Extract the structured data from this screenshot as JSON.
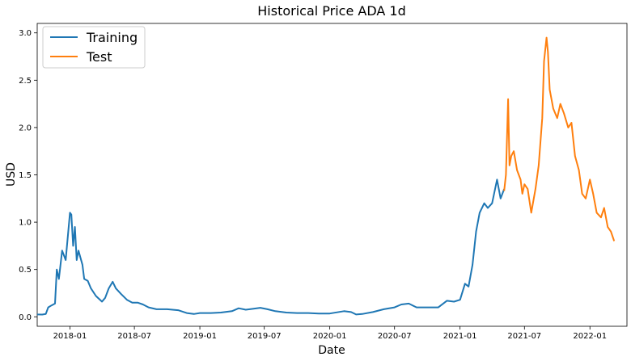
{
  "chart_data": {
    "type": "line",
    "title": "Historical Price ADA 1d",
    "xlabel": "Date",
    "ylabel": "USD",
    "xlim": [
      "2017-10-01",
      "2022-04-15"
    ],
    "ylim": [
      -0.1,
      3.1
    ],
    "x_ticks": [
      "2018-01",
      "2018-07",
      "2019-01",
      "2019-07",
      "2020-01",
      "2020-07",
      "2021-01",
      "2021-07",
      "2022-01"
    ],
    "y_ticks": [
      0.0,
      0.5,
      1.0,
      1.5,
      2.0,
      2.5,
      3.0
    ],
    "y_tick_labels": [
      "0.0",
      "0.5",
      "1.0",
      "1.5",
      "2.0",
      "2.5",
      "3.0"
    ],
    "grid": false,
    "legend_position": "top-left",
    "series": [
      {
        "name": "Training",
        "color": "#1f77b4",
        "points": [
          [
            "2017-10-01",
            0.025
          ],
          [
            "2017-10-15",
            0.024
          ],
          [
            "2017-10-25",
            0.03
          ],
          [
            "2017-11-01",
            0.1
          ],
          [
            "2017-11-10",
            0.12
          ],
          [
            "2017-11-20",
            0.14
          ],
          [
            "2017-11-25",
            0.5
          ],
          [
            "2017-12-01",
            0.4
          ],
          [
            "2017-12-10",
            0.7
          ],
          [
            "2017-12-20",
            0.6
          ],
          [
            "2018-01-01",
            1.1
          ],
          [
            "2018-01-05",
            1.08
          ],
          [
            "2018-01-10",
            0.75
          ],
          [
            "2018-01-15",
            0.95
          ],
          [
            "2018-01-20",
            0.6
          ],
          [
            "2018-01-25",
            0.7
          ],
          [
            "2018-02-05",
            0.55
          ],
          [
            "2018-02-10",
            0.4
          ],
          [
            "2018-02-20",
            0.38
          ],
          [
            "2018-03-01",
            0.3
          ],
          [
            "2018-03-15",
            0.22
          ],
          [
            "2018-04-01",
            0.16
          ],
          [
            "2018-04-10",
            0.2
          ],
          [
            "2018-04-20",
            0.3
          ],
          [
            "2018-05-01",
            0.37
          ],
          [
            "2018-05-10",
            0.3
          ],
          [
            "2018-05-25",
            0.24
          ],
          [
            "2018-06-10",
            0.18
          ],
          [
            "2018-06-25",
            0.15
          ],
          [
            "2018-07-10",
            0.15
          ],
          [
            "2018-07-25",
            0.13
          ],
          [
            "2018-08-10",
            0.1
          ],
          [
            "2018-09-01",
            0.08
          ],
          [
            "2018-10-01",
            0.08
          ],
          [
            "2018-11-01",
            0.07
          ],
          [
            "2018-11-25",
            0.04
          ],
          [
            "2018-12-15",
            0.03
          ],
          [
            "2019-01-01",
            0.04
          ],
          [
            "2019-02-01",
            0.04
          ],
          [
            "2019-03-01",
            0.045
          ],
          [
            "2019-04-01",
            0.06
          ],
          [
            "2019-04-20",
            0.09
          ],
          [
            "2019-05-10",
            0.075
          ],
          [
            "2019-06-01",
            0.085
          ],
          [
            "2019-06-20",
            0.095
          ],
          [
            "2019-07-10",
            0.08
          ],
          [
            "2019-08-01",
            0.06
          ],
          [
            "2019-09-01",
            0.045
          ],
          [
            "2019-10-01",
            0.04
          ],
          [
            "2019-11-01",
            0.04
          ],
          [
            "2019-12-01",
            0.035
          ],
          [
            "2020-01-01",
            0.035
          ],
          [
            "2020-02-10",
            0.06
          ],
          [
            "2020-03-01",
            0.05
          ],
          [
            "2020-03-15",
            0.025
          ],
          [
            "2020-04-01",
            0.03
          ],
          [
            "2020-05-01",
            0.05
          ],
          [
            "2020-06-01",
            0.08
          ],
          [
            "2020-07-01",
            0.1
          ],
          [
            "2020-07-20",
            0.13
          ],
          [
            "2020-08-10",
            0.14
          ],
          [
            "2020-09-01",
            0.1
          ],
          [
            "2020-10-01",
            0.1
          ],
          [
            "2020-11-01",
            0.1
          ],
          [
            "2020-11-25",
            0.17
          ],
          [
            "2020-12-15",
            0.16
          ],
          [
            "2021-01-01",
            0.18
          ],
          [
            "2021-01-15",
            0.35
          ],
          [
            "2021-01-25",
            0.32
          ],
          [
            "2021-02-05",
            0.55
          ],
          [
            "2021-02-15",
            0.9
          ],
          [
            "2021-02-25",
            1.1
          ],
          [
            "2021-03-10",
            1.2
          ],
          [
            "2021-03-20",
            1.15
          ],
          [
            "2021-04-01",
            1.2
          ],
          [
            "2021-04-15",
            1.45
          ],
          [
            "2021-04-25",
            1.25
          ],
          [
            "2021-05-05",
            1.35
          ]
        ]
      },
      {
        "name": "Test",
        "color": "#ff7f0e",
        "points": [
          [
            "2021-05-05",
            1.33
          ],
          [
            "2021-05-10",
            1.5
          ],
          [
            "2021-05-16",
            2.3
          ],
          [
            "2021-05-20",
            1.6
          ],
          [
            "2021-05-25",
            1.7
          ],
          [
            "2021-06-01",
            1.75
          ],
          [
            "2021-06-10",
            1.55
          ],
          [
            "2021-06-20",
            1.45
          ],
          [
            "2021-06-25",
            1.3
          ],
          [
            "2021-07-01",
            1.4
          ],
          [
            "2021-07-10",
            1.35
          ],
          [
            "2021-07-20",
            1.1
          ],
          [
            "2021-08-01",
            1.35
          ],
          [
            "2021-08-10",
            1.6
          ],
          [
            "2021-08-20",
            2.1
          ],
          [
            "2021-08-25",
            2.7
          ],
          [
            "2021-09-01",
            2.95
          ],
          [
            "2021-09-05",
            2.8
          ],
          [
            "2021-09-10",
            2.4
          ],
          [
            "2021-09-20",
            2.2
          ],
          [
            "2021-10-01",
            2.1
          ],
          [
            "2021-10-10",
            2.25
          ],
          [
            "2021-10-20",
            2.15
          ],
          [
            "2021-11-01",
            2.0
          ],
          [
            "2021-11-10",
            2.05
          ],
          [
            "2021-11-20",
            1.7
          ],
          [
            "2021-12-01",
            1.55
          ],
          [
            "2021-12-10",
            1.3
          ],
          [
            "2021-12-20",
            1.25
          ],
          [
            "2022-01-01",
            1.45
          ],
          [
            "2022-01-10",
            1.3
          ],
          [
            "2022-01-20",
            1.1
          ],
          [
            "2022-02-01",
            1.05
          ],
          [
            "2022-02-10",
            1.15
          ],
          [
            "2022-02-20",
            0.95
          ],
          [
            "2022-03-01",
            0.9
          ],
          [
            "2022-03-10",
            0.8
          ]
        ]
      }
    ]
  }
}
